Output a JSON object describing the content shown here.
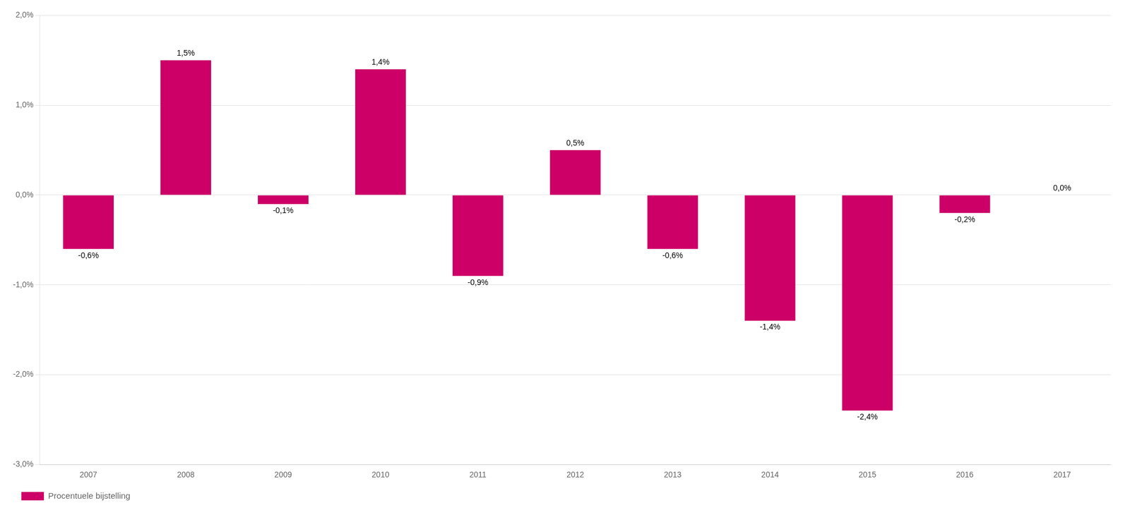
{
  "chart_data": {
    "type": "bar",
    "categories": [
      "2007",
      "2008",
      "2009",
      "2010",
      "2011",
      "2012",
      "2013",
      "2014",
      "2015",
      "2016",
      "2017"
    ],
    "series": [
      {
        "name": "Procentuele bijstelling",
        "color": "#CC0066",
        "values": [
          -0.6,
          1.5,
          -0.1,
          1.4,
          -0.9,
          0.5,
          -0.6,
          -1.4,
          -2.4,
          -0.2,
          0.0
        ],
        "value_labels": [
          "-0,6%",
          "1,5%",
          "-0,1%",
          "1,4%",
          "-0,9%",
          "0,5%",
          "-0,6%",
          "-1,4%",
          "-2,4%",
          "-0,2%",
          "0,0%"
        ]
      }
    ],
    "ylim": [
      -3.0,
      2.0
    ],
    "yticks": [
      {
        "value": -3.0,
        "label": "-3,0%"
      },
      {
        "value": -2.0,
        "label": "-2,0%"
      },
      {
        "value": -1.0,
        "label": "-1,0%"
      },
      {
        "value": 0.0,
        "label": "0,0%"
      },
      {
        "value": 1.0,
        "label": "1,0%"
      },
      {
        "value": 2.0,
        "label": "2,0%"
      }
    ],
    "grid": true,
    "legend": "lower left",
    "data_labels": true
  }
}
